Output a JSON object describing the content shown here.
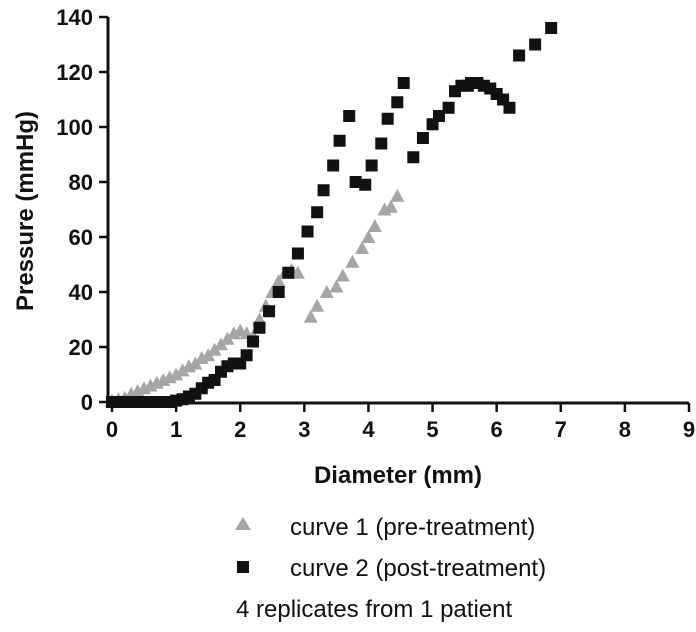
{
  "chart_data": {
    "type": "scatter",
    "title": "",
    "xlabel": "Diameter (mm)",
    "ylabel": "Pressure (mmHg)",
    "xlim": [
      0,
      9
    ],
    "ylim": [
      0,
      140
    ],
    "xticks": [
      0,
      1,
      2,
      3,
      4,
      5,
      6,
      7,
      8,
      9
    ],
    "yticks": [
      0,
      20,
      40,
      60,
      80,
      100,
      120,
      140
    ],
    "grid": false,
    "legend_position": "bottom",
    "note": "4 replicates from 1 patient",
    "series": [
      {
        "name": "curve 1 (pre-treatment)",
        "marker": "triangle",
        "color": "#a6a6a6",
        "x": [
          0.0,
          0.1,
          0.2,
          0.3,
          0.4,
          0.5,
          0.6,
          0.7,
          0.8,
          0.9,
          1.0,
          1.1,
          1.2,
          1.3,
          1.4,
          1.5,
          1.6,
          1.7,
          1.8,
          1.9,
          2.0,
          2.1,
          2.2,
          2.3,
          2.4,
          2.5,
          2.6,
          2.7,
          2.8,
          2.9,
          3.1,
          3.2,
          3.35,
          3.5,
          3.6,
          3.75,
          3.9,
          4.0,
          4.1,
          4.25,
          4.35,
          4.45
        ],
        "y": [
          0.5,
          1,
          1.5,
          3,
          4,
          5,
          6,
          7,
          8,
          9,
          10,
          11.5,
          13,
          14,
          16,
          17,
          19,
          21,
          23,
          25,
          26,
          25,
          24,
          30,
          35,
          40,
          44,
          47,
          48,
          47,
          31,
          35,
          40,
          42,
          46,
          51,
          56,
          60,
          64,
          70,
          71,
          75
        ]
      },
      {
        "name": "curve 2 (post-treatment)",
        "marker": "square",
        "color": "#111111",
        "x": [
          0.0,
          0.1,
          0.2,
          0.3,
          0.4,
          0.5,
          0.6,
          0.7,
          0.8,
          0.9,
          1.0,
          1.1,
          1.2,
          1.3,
          1.4,
          1.5,
          1.6,
          1.7,
          1.8,
          1.9,
          2.0,
          2.1,
          2.2,
          2.3,
          2.45,
          2.6,
          2.75,
          2.9,
          3.05,
          3.2,
          3.3,
          3.45,
          3.55,
          3.7,
          3.8,
          3.95,
          4.05,
          4.2,
          4.3,
          4.45,
          4.55,
          4.7,
          4.85,
          5.0,
          5.1,
          5.25,
          5.35,
          5.45,
          5.55,
          5.6,
          5.7,
          5.8,
          5.9,
          6.0,
          6.1,
          6.2,
          6.35,
          6.6,
          6.85
        ],
        "y": [
          0,
          0,
          0,
          0,
          0,
          0,
          0,
          0,
          0,
          0,
          0.5,
          1,
          2,
          3,
          5,
          7,
          8,
          11,
          13,
          14,
          14,
          17,
          22,
          27,
          33,
          40,
          47,
          54,
          62,
          69,
          77,
          86,
          95,
          104,
          80,
          79,
          86,
          94,
          103,
          109,
          116,
          89,
          96,
          101,
          104,
          107,
          113,
          115,
          115,
          116,
          116,
          115,
          114,
          112,
          110,
          107,
          126,
          130,
          136
        ]
      }
    ]
  }
}
